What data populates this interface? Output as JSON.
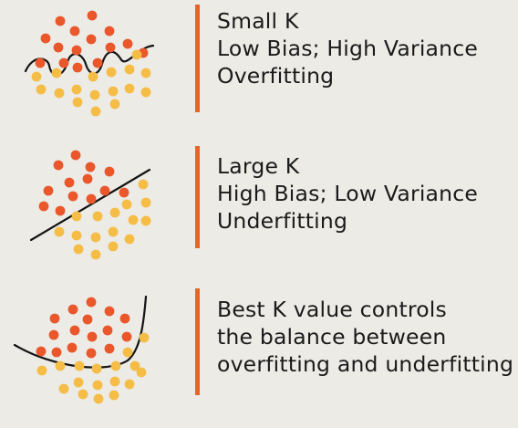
{
  "colors": {
    "background": "#ecebe6",
    "class_a": "#e9572b",
    "class_b": "#f5bd46",
    "accent_bar": "#e8632c",
    "boundary": "#141414"
  },
  "panels": [
    {
      "lines": [
        "Small K",
        "Low Bias; High Variance",
        "Overfitting"
      ]
    },
    {
      "lines": [
        "Large K",
        "High Bias; Low Variance",
        "Underfitting"
      ]
    },
    {
      "lines": [
        "Best K value controls",
        "the balance between",
        "overfitting and underfitting"
      ]
    }
  ]
}
